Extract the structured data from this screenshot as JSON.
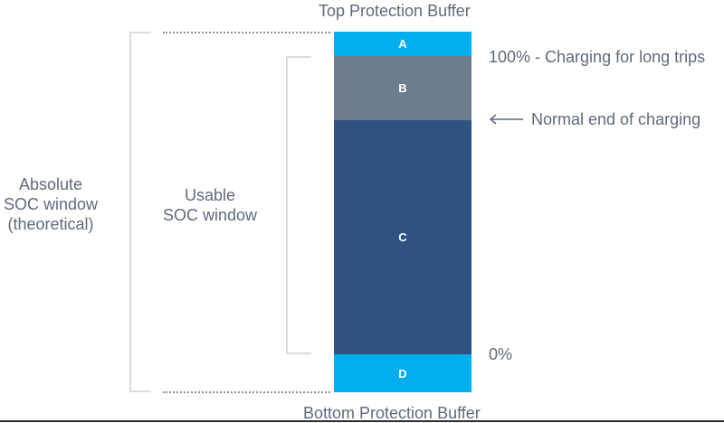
{
  "labels": {
    "top_buffer": "Top Protection Buffer",
    "bottom_buffer": "Bottom Protection Buffer",
    "full_charge": "100% - Charging for long trips",
    "normal_end": "Normal end of charging",
    "zero": "0%",
    "absolute_window": [
      "Absolute",
      "SOC window",
      "(theoretical)"
    ],
    "usable_window": [
      "Usable",
      "SOC window"
    ]
  },
  "segments": [
    {
      "id": "A",
      "label": "A",
      "color": "#03aeef"
    },
    {
      "id": "B",
      "label": "B",
      "color": "#6c7d90"
    },
    {
      "id": "C",
      "label": "C",
      "color": "#2f5282"
    },
    {
      "id": "D",
      "label": "D",
      "color": "#03aeef"
    }
  ],
  "colors": {
    "text": "#5f6b7a",
    "bracket": "#d9dde2",
    "arrow": "#5f6b7a"
  }
}
